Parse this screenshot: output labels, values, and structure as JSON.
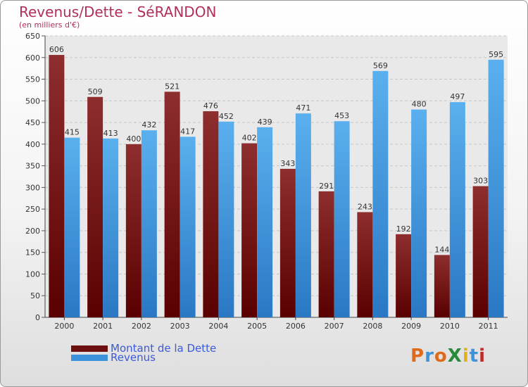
{
  "header": {
    "title": "Revenus/Dette - SéRANDON",
    "subtitle": "(en milliers d'€)"
  },
  "chart_data": {
    "type": "bar",
    "categories": [
      "2000",
      "2001",
      "2002",
      "2003",
      "2004",
      "2005",
      "2006",
      "2007",
      "2008",
      "2009",
      "2010",
      "2011"
    ],
    "series": [
      {
        "name": "Montant de la Dette",
        "values": [
          606,
          509,
          400,
          521,
          476,
          402,
          343,
          291,
          243,
          192,
          144,
          303
        ],
        "color": "#7a1c1c"
      },
      {
        "name": "Revenus",
        "values": [
          415,
          413,
          432,
          417,
          452,
          439,
          471,
          453,
          569,
          480,
          497,
          595
        ],
        "color": "#3c93dc"
      }
    ],
    "ylim": [
      0,
      650
    ],
    "yticks": [
      0,
      50,
      100,
      150,
      200,
      250,
      300,
      350,
      400,
      450,
      500,
      550,
      600,
      650
    ],
    "grid": true,
    "legend": "bottom-left"
  },
  "legend": {
    "items": [
      {
        "label": "Montant de la Dette",
        "color": "#6e0f0f"
      },
      {
        "label": "Revenus",
        "color": "#3c93dc"
      }
    ]
  },
  "logo": {
    "text": "ProXiti",
    "letter_colors": [
      "#e06a1c",
      "#3c93dc",
      "#e06a1c",
      "#2a8a3a",
      "#e0b01c",
      "#3c93dc",
      "#c02a2a"
    ]
  }
}
